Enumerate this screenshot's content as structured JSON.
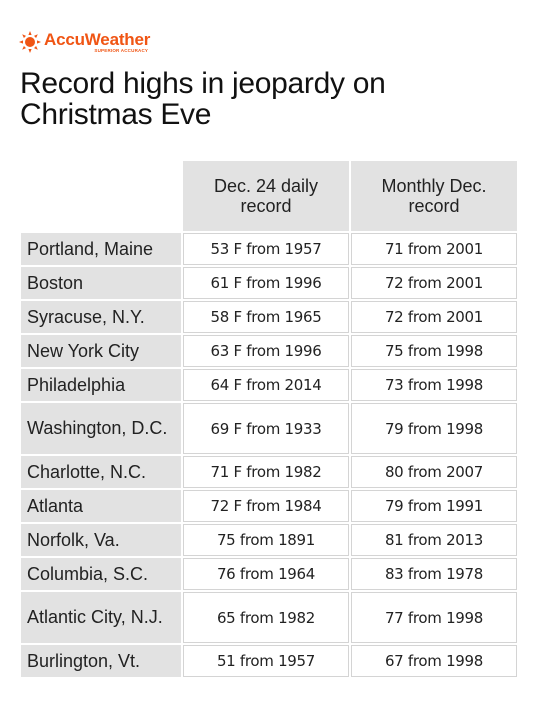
{
  "logo": {
    "brand": "AccuWeather",
    "tagline": "SUPERIOR ACCURACY",
    "brand_color": "#f05514",
    "icon": "sun-icon"
  },
  "title": "Record highs in jeopardy on Christmas Eve",
  "chart_data": {
    "type": "table",
    "title": "Record highs in jeopardy on Christmas Eve",
    "columns": [
      "",
      "Dec. 24 daily record",
      "Monthly Dec. record"
    ],
    "rows": [
      {
        "city": "Portland, Maine",
        "daily": "53 F from 1957",
        "monthly": "71 from 2001"
      },
      {
        "city": "Boston",
        "daily": "61 F from 1996",
        "monthly": "72 from 2001"
      },
      {
        "city": "Syracuse, N.Y.",
        "daily": "58 F from 1965",
        "monthly": "72 from 2001"
      },
      {
        "city": "New York City",
        "daily": "63 F from 1996",
        "monthly": "75 from 1998"
      },
      {
        "city": "Philadelphia",
        "daily": "64 F from 2014",
        "monthly": "73 from 1998"
      },
      {
        "city": "Washington, D.C.",
        "daily": "69 F from 1933",
        "monthly": "79 from 1998"
      },
      {
        "city": "Charlotte, N.C.",
        "daily": "71 F from 1982",
        "monthly": "80 from 2007"
      },
      {
        "city": "Atlanta",
        "daily": "72 F from 1984",
        "monthly": "79 from 1991"
      },
      {
        "city": "Norfolk, Va.",
        "daily": "75 from 1891",
        "monthly": "81 from 2013"
      },
      {
        "city": "Columbia, S.C.",
        "daily": "76 from 1964",
        "monthly": "83 from 1978"
      },
      {
        "city": "Atlantic City, N.J.",
        "daily": "65 from 1982",
        "monthly": "77 from 1998"
      },
      {
        "city": "Burlington, Vt.",
        "daily": "51 from 1957",
        "monthly": "67 from 1998"
      }
    ]
  }
}
